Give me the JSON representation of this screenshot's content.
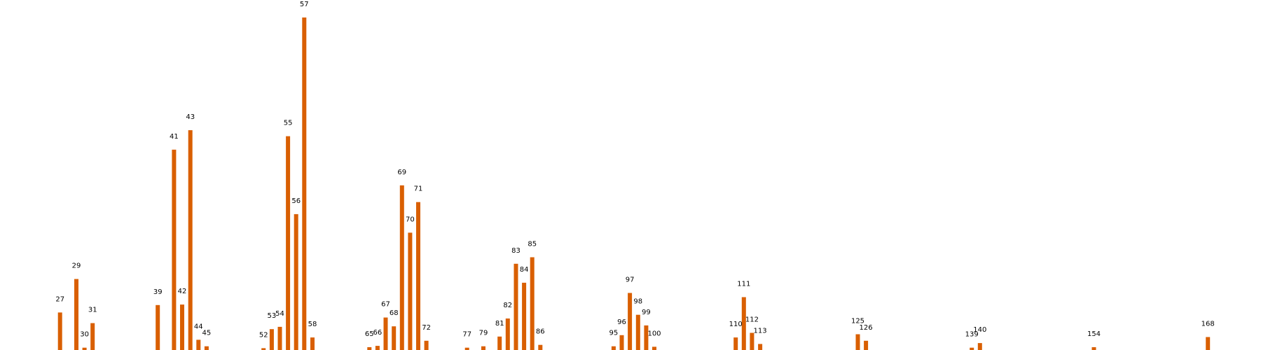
{
  "colors": {
    "bar": "#d95f02",
    "background": "#ffffff",
    "label": "#000000"
  },
  "chart_data": {
    "type": "bar",
    "title": "",
    "xlabel": "",
    "ylabel": "",
    "axes_visible": false,
    "grid": false,
    "xlim": [
      0,
      180
    ],
    "ylim": [
      0,
      72
    ],
    "x": [
      27,
      29,
      30,
      31,
      39,
      41,
      42,
      43,
      44,
      45,
      52,
      53,
      54,
      55,
      56,
      57,
      58,
      65,
      66,
      67,
      68,
      69,
      70,
      71,
      72,
      77,
      79,
      81,
      82,
      83,
      84,
      85,
      86,
      95,
      96,
      97,
      98,
      99,
      100,
      110,
      111,
      112,
      113,
      125,
      126,
      139,
      140,
      154,
      168
    ],
    "labels": [
      "27",
      "29",
      "30",
      "31",
      "39",
      "41",
      "42",
      "43",
      "44",
      "45",
      "52",
      "53",
      "54",
      "55",
      "56",
      "57",
      "58",
      "65",
      "66",
      "67",
      "68",
      "69",
      "70",
      "71",
      "72",
      "77",
      "79",
      "81",
      "82",
      "83",
      "84",
      "85",
      "86",
      "95",
      "96",
      "97",
      "98",
      "99",
      "100",
      "110",
      "111",
      "112",
      "113",
      "125",
      "126",
      "139",
      "140",
      "154",
      "168"
    ],
    "values": [
      8.4,
      15.6,
      0.8,
      6.1,
      10.0,
      43.5,
      10.1,
      47.7,
      2.5,
      1.1,
      0.7,
      4.8,
      5.3,
      46.4,
      29.6,
      72.0,
      3.0,
      0.9,
      1.2,
      7.3,
      5.4,
      35.8,
      25.6,
      32.2,
      2.3,
      0.8,
      1.1,
      3.2,
      7.1,
      18.9,
      14.8,
      20.3,
      1.4,
      1.1,
      3.5,
      12.6,
      7.9,
      5.6,
      1.0,
      3.0,
      11.7,
      4.0,
      1.6,
      3.7,
      2.3,
      0.8,
      1.8,
      0.9,
      3.1
    ]
  }
}
